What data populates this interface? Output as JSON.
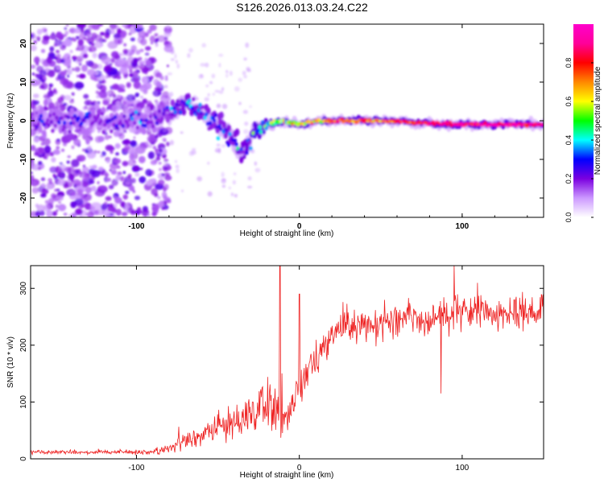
{
  "title": "S126.2026.013.03.24.C22",
  "chart_data": [
    {
      "type": "heatmap",
      "name": "spectrogram",
      "xlabel": "Height of straight line (km)",
      "ylabel": "Frequency (Hz)",
      "xlim": [
        -165,
        150
      ],
      "ylim": [
        -25,
        25
      ],
      "xticks": [
        -100,
        0,
        100
      ],
      "yticks": [
        -20,
        -10,
        0,
        10,
        20
      ],
      "colorbar": {
        "label": "Normalized spectral amplitude",
        "range": [
          0,
          1
        ],
        "ticks": [
          "0.0",
          "0.2",
          "0.4",
          "0.6",
          "0.8"
        ],
        "colors": [
          "#ffffff",
          "#cc99ff",
          "#7b00e0",
          "#0000ff",
          "#00ffff",
          "#00ff00",
          "#ffff00",
          "#ff8800",
          "#ff0000",
          "#ff0099",
          "#ff00cc"
        ]
      },
      "ridge": [
        {
          "x": -160,
          "f": 0
        },
        {
          "x": -120,
          "f": 0
        },
        {
          "x": -90,
          "f": 0
        },
        {
          "x": -80,
          "f": 2
        },
        {
          "x": -68,
          "f": 5
        },
        {
          "x": -60,
          "f": 2
        },
        {
          "x": -50,
          "f": -1
        },
        {
          "x": -40,
          "f": -5
        },
        {
          "x": -35,
          "f": -9
        },
        {
          "x": -28,
          "f": -3
        },
        {
          "x": -20,
          "f": -1
        },
        {
          "x": -10,
          "f": 0
        },
        {
          "x": 0,
          "f": -1
        },
        {
          "x": 10,
          "f": 0
        },
        {
          "x": 50,
          "f": 0
        },
        {
          "x": 100,
          "f": -1
        },
        {
          "x": 150,
          "f": -1
        }
      ],
      "ridge_amplitude": [
        {
          "x": -160,
          "a": 0.18
        },
        {
          "x": -90,
          "a": 0.18
        },
        {
          "x": -70,
          "a": 0.28
        },
        {
          "x": -50,
          "a": 0.25
        },
        {
          "x": -30,
          "a": 0.3
        },
        {
          "x": -15,
          "a": 0.5
        },
        {
          "x": 0,
          "a": 0.55
        },
        {
          "x": 20,
          "a": 0.75
        },
        {
          "x": 60,
          "a": 0.8
        },
        {
          "x": 100,
          "a": 0.9
        },
        {
          "x": 150,
          "a": 0.9
        }
      ]
    },
    {
      "type": "line",
      "name": "snr",
      "xlabel": "Height of straight line (km)",
      "ylabel": "SNR (10 * v/v)",
      "xlim": [
        -165,
        150
      ],
      "ylim": [
        0,
        340
      ],
      "xticks": [
        -100,
        0,
        100
      ],
      "yticks": [
        0,
        100,
        200,
        300
      ],
      "color": "#ee2222",
      "envelope": [
        {
          "x": -165,
          "mean": 12,
          "noise": 5
        },
        {
          "x": -90,
          "mean": 12,
          "noise": 6
        },
        {
          "x": -80,
          "mean": 20,
          "noise": 12
        },
        {
          "x": -60,
          "mean": 40,
          "noise": 25
        },
        {
          "x": -40,
          "mean": 70,
          "noise": 45
        },
        {
          "x": -20,
          "mean": 90,
          "noise": 60
        },
        {
          "x": -12,
          "mean": 80,
          "noise": 80
        },
        {
          "x": -8,
          "mean": 60,
          "noise": 40
        },
        {
          "x": -2,
          "mean": 120,
          "noise": 40
        },
        {
          "x": 10,
          "mean": 180,
          "noise": 40
        },
        {
          "x": 25,
          "mean": 230,
          "noise": 35
        },
        {
          "x": 60,
          "mean": 245,
          "noise": 40
        },
        {
          "x": 100,
          "mean": 255,
          "noise": 40
        },
        {
          "x": 150,
          "mean": 258,
          "noise": 35
        }
      ],
      "spikes": [
        {
          "x": -12,
          "y": 340
        },
        {
          "x": 0,
          "y": 290
        },
        {
          "x": 87,
          "y": 115
        },
        {
          "x": 95,
          "y": 340
        },
        {
          "x": 132,
          "y": 280
        }
      ]
    }
  ]
}
